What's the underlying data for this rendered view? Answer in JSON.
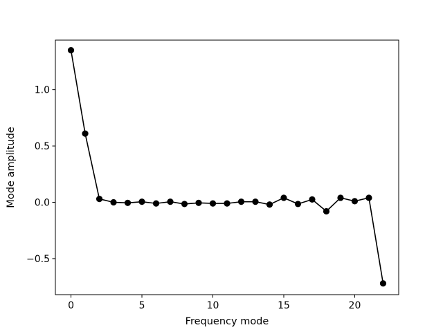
{
  "chart_data": {
    "type": "line",
    "title": "",
    "xlabel": "Frequency mode",
    "ylabel": "Mode amplitude",
    "xlim": [
      -1.1,
      23.1
    ],
    "ylim": [
      -0.82,
      1.44
    ],
    "xticks": [
      0,
      5,
      10,
      15,
      20
    ],
    "xtick_labels": [
      "0",
      "5",
      "10",
      "15",
      "20"
    ],
    "yticks": [
      -0.5,
      0.0,
      0.5,
      1.0
    ],
    "ytick_labels": [
      "−0.5",
      "0.0",
      "0.5",
      "1.0"
    ],
    "grid": false,
    "legend": "none",
    "series": [
      {
        "color": "#000000",
        "marker": "circle",
        "x": [
          0,
          1,
          2,
          3,
          4,
          5,
          6,
          7,
          8,
          9,
          10,
          11,
          12,
          13,
          14,
          15,
          16,
          17,
          18,
          19,
          20,
          21,
          22
        ],
        "y": [
          1.35,
          0.61,
          0.03,
          0.0,
          -0.005,
          0.005,
          -0.01,
          0.005,
          -0.015,
          -0.005,
          -0.01,
          -0.01,
          0.005,
          0.005,
          -0.02,
          0.04,
          -0.015,
          0.025,
          -0.08,
          0.04,
          0.01,
          0.04,
          -0.72
        ]
      }
    ]
  }
}
